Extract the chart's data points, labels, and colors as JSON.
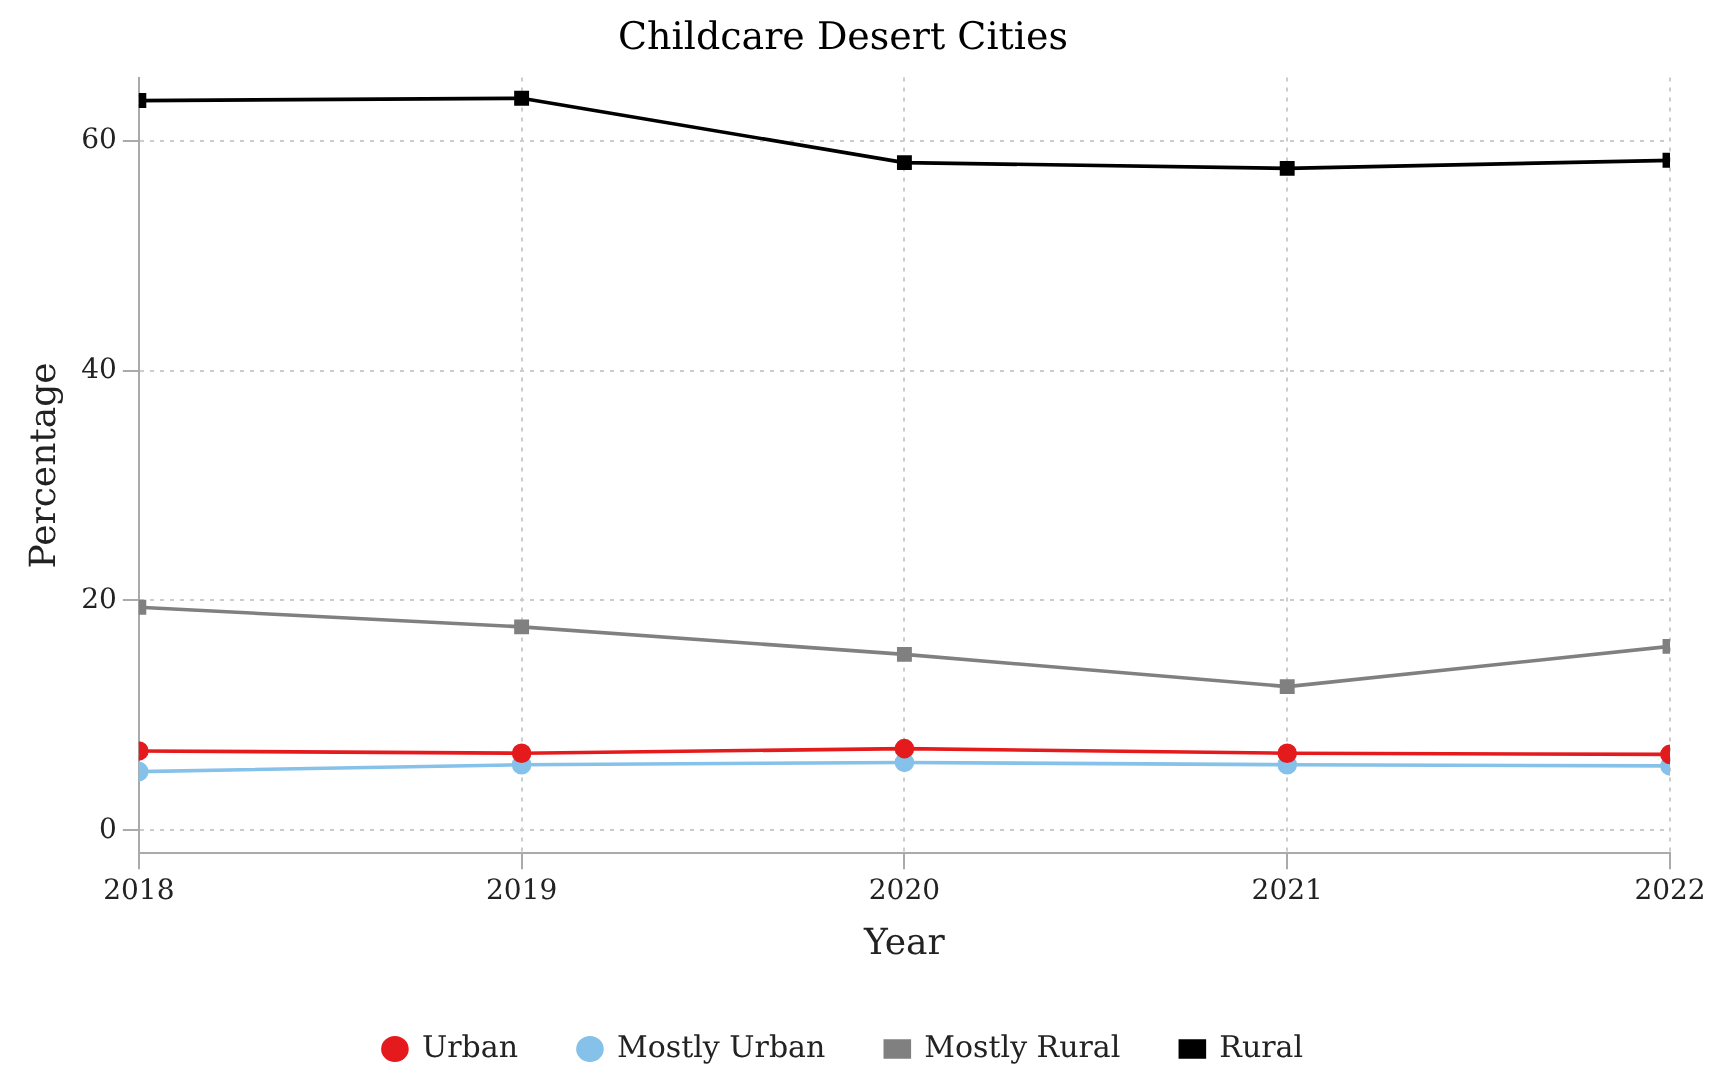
{
  "chart_data": {
    "type": "line",
    "title": "Childcare Desert Cities",
    "xlabel": "Year",
    "ylabel": "Percentage",
    "x": [
      2018,
      2019,
      2020,
      2021,
      2022
    ],
    "series": [
      {
        "name": "Urban",
        "color": "#e41a1c",
        "marker": "circle",
        "values": [
          6.9,
          6.7,
          7.1,
          6.7,
          6.6
        ]
      },
      {
        "name": "Mostly Urban",
        "color": "#85c1e9",
        "marker": "circle",
        "values": [
          5.1,
          5.7,
          5.9,
          5.7,
          5.6
        ]
      },
      {
        "name": "Mostly Rural",
        "color": "#808080",
        "marker": "square",
        "values": [
          19.4,
          17.7,
          15.3,
          12.5,
          16.0
        ]
      },
      {
        "name": "Rural",
        "color": "#000000",
        "marker": "square",
        "values": [
          63.5,
          63.7,
          58.1,
          57.6,
          58.3
        ]
      }
    ],
    "xlim": [
      2018,
      2022
    ],
    "xticks": [
      2018,
      2019,
      2020,
      2021,
      2022
    ],
    "ylim": [
      -2,
      65.5
    ],
    "yticks": [
      0,
      20,
      40,
      60
    ],
    "grid": true,
    "legend": "bottom",
    "line_style": "solid"
  }
}
